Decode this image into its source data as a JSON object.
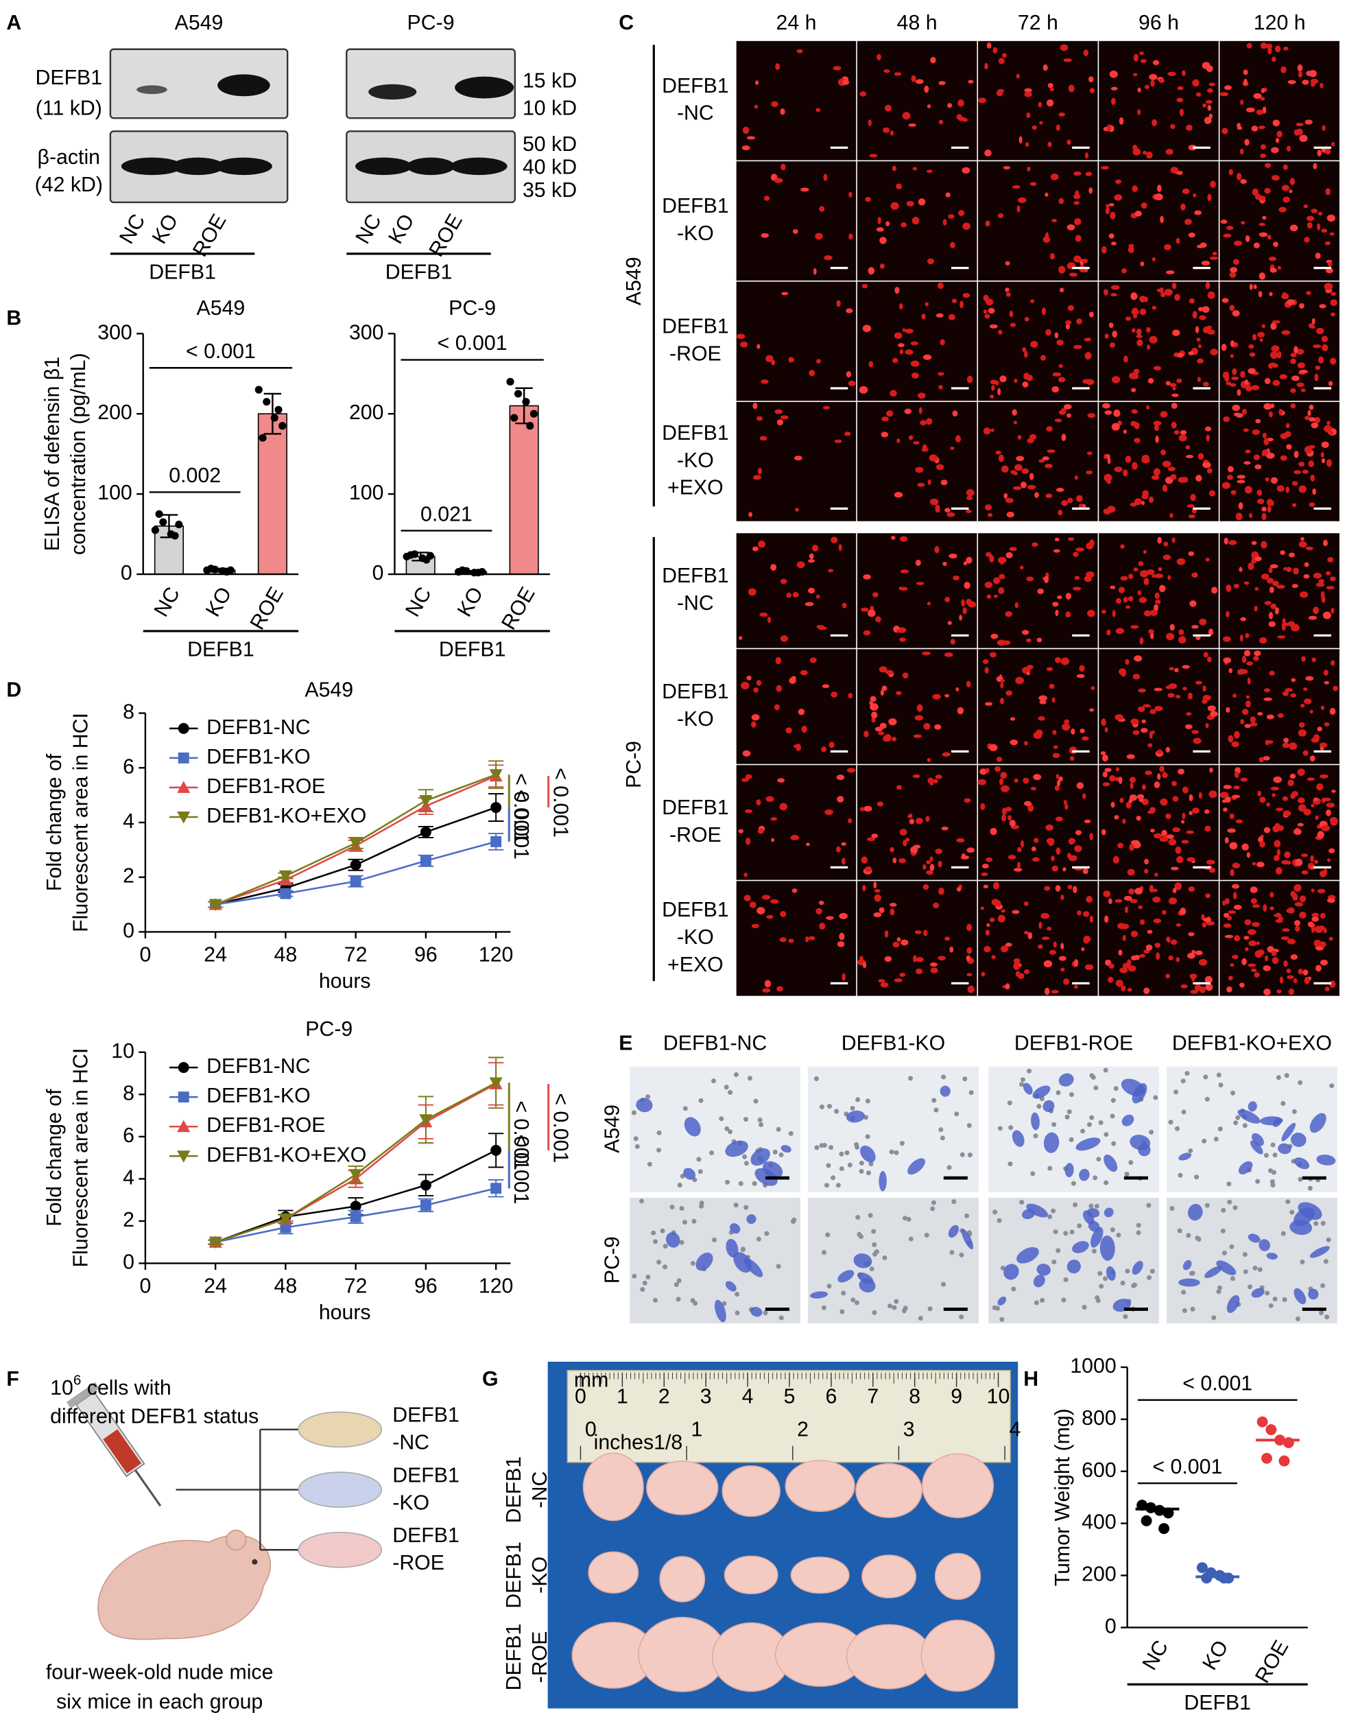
{
  "panel_labels": [
    "A",
    "B",
    "C",
    "D",
    "E",
    "F",
    "G",
    "H"
  ],
  "blot": {
    "cell_lines": [
      "A549",
      "PC-9"
    ],
    "proteins": [
      {
        "name": "DEFB1",
        "size": "(11 kD)"
      },
      {
        "name": "β-actin",
        "size": "(42 kD)"
      }
    ],
    "markers": [
      "15 kD",
      "10 kD",
      "50 kD",
      "40 kD",
      "35 kD"
    ],
    "lanes": [
      "NC",
      "KO",
      "ROE"
    ],
    "lane_colors": [
      "#000000",
      "#3d5fb5",
      "#e8383d"
    ],
    "group": "DEFB1"
  },
  "chart_data": [
    {
      "type": "bar",
      "title": "A549",
      "ylabel": [
        "ELISA of defensin β1",
        "concentration (pg/mL)"
      ],
      "categories": [
        "NC",
        "KO",
        "ROE"
      ],
      "category_colors": [
        "#000000",
        "#3d5fb5",
        "#e8383d"
      ],
      "colors": [
        "#d4d4d4",
        "#d4d4d4",
        "#f08a8a"
      ],
      "values": [
        60,
        5,
        200
      ],
      "errors": [
        14,
        2,
        25
      ],
      "points": [
        [
          55,
          65,
          50,
          62,
          75,
          48
        ],
        [
          5,
          6,
          4,
          5,
          7,
          3
        ],
        [
          230,
          215,
          195,
          185,
          170,
          205
        ]
      ],
      "ylim": [
        0,
        300
      ],
      "yticks": [
        0,
        100,
        200,
        300
      ],
      "group_label": "DEFB1",
      "comparisons": [
        {
          "groups": [
            "NC",
            "KO"
          ],
          "label": "0.002"
        },
        {
          "groups": [
            "NC",
            "ROE"
          ],
          "label": "< 0.001"
        }
      ]
    },
    {
      "type": "bar",
      "title": "PC-9",
      "categories": [
        "NC",
        "KO",
        "ROE"
      ],
      "category_colors": [
        "#000000",
        "#3d5fb5",
        "#e8383d"
      ],
      "colors": [
        "#d4d4d4",
        "#d4d4d4",
        "#f08a8a"
      ],
      "values": [
        22,
        3,
        210
      ],
      "errors": [
        5,
        1,
        22
      ],
      "points": [
        [
          22,
          25,
          20,
          23,
          24,
          18
        ],
        [
          3,
          4,
          2,
          3,
          5,
          2
        ],
        [
          240,
          225,
          215,
          200,
          195,
          185
        ]
      ],
      "ylim": [
        0,
        300
      ],
      "yticks": [
        0,
        100,
        200,
        300
      ],
      "group_label": "DEFB1",
      "comparisons": [
        {
          "groups": [
            "NC",
            "KO"
          ],
          "label": "0.021"
        },
        {
          "groups": [
            "NC",
            "ROE"
          ],
          "label": "< 0.001"
        }
      ]
    },
    {
      "type": "line",
      "title": "A549",
      "xlabel": "hours",
      "ylabel": [
        "Fold change of",
        "Fluorescent area in HCI"
      ],
      "x": [
        24,
        48,
        72,
        96,
        120
      ],
      "xlim": [
        0,
        125
      ],
      "xticks": [
        0,
        24,
        48,
        72,
        96,
        120
      ],
      "ylim": [
        0,
        8
      ],
      "yticks": [
        0,
        2,
        4,
        6,
        8
      ],
      "series": [
        {
          "name": "DEFB1-NC",
          "color": "#000000",
          "marker": "circle",
          "values": [
            1,
            1.6,
            2.45,
            3.65,
            4.55
          ],
          "errors": [
            0.1,
            0.15,
            0.2,
            0.2,
            0.5
          ]
        },
        {
          "name": "DEFB1-KO",
          "color": "#4a6cc4",
          "marker": "square",
          "values": [
            1,
            1.4,
            1.85,
            2.6,
            3.3
          ],
          "errors": [
            0.1,
            0.1,
            0.2,
            0.2,
            0.3
          ]
        },
        {
          "name": "DEFB1-ROE",
          "color": "#e04848",
          "marker": "triangle",
          "values": [
            1,
            1.9,
            3.15,
            4.6,
            5.7
          ],
          "errors": [
            0.1,
            0.1,
            0.2,
            0.3,
            0.4
          ]
        },
        {
          "name": "DEFB1-KO+EXO",
          "color": "#7a7a18",
          "marker": "triangle-down",
          "values": [
            1,
            2.05,
            3.25,
            4.8,
            5.75
          ],
          "errors": [
            0.1,
            0.1,
            0.2,
            0.4,
            0.5
          ]
        }
      ],
      "p_values": [
        {
          "groups": [
            "DEFB1-KO+EXO",
            "DEFB1-KO"
          ],
          "label": "< 0.001"
        },
        {
          "groups": [
            "DEFB1-ROE",
            "DEFB1-NC"
          ],
          "label": "< 0.001"
        },
        {
          "groups": [
            "DEFB1-KO",
            "DEFB1-NC"
          ],
          "label": "< 0.001"
        }
      ]
    },
    {
      "type": "line",
      "title": "PC-9",
      "xlabel": "hours",
      "ylabel": [
        "Fold change of",
        "Fluorescent area in HCI"
      ],
      "x": [
        24,
        48,
        72,
        96,
        120
      ],
      "xlim": [
        0,
        125
      ],
      "xticks": [
        0,
        24,
        48,
        72,
        96,
        120
      ],
      "ylim": [
        0,
        10
      ],
      "yticks": [
        0,
        2,
        4,
        6,
        8,
        10
      ],
      "series": [
        {
          "name": "DEFB1-NC",
          "color": "#000000",
          "marker": "circle",
          "values": [
            1,
            2.2,
            2.7,
            3.7,
            5.35
          ],
          "errors": [
            0.1,
            0.3,
            0.4,
            0.5,
            0.8
          ]
        },
        {
          "name": "DEFB1-KO",
          "color": "#4a6cc4",
          "marker": "square",
          "values": [
            1,
            1.7,
            2.2,
            2.75,
            3.55
          ],
          "errors": [
            0.1,
            0.3,
            0.3,
            0.3,
            0.4
          ]
        },
        {
          "name": "DEFB1-ROE",
          "color": "#e04848",
          "marker": "triangle",
          "values": [
            1,
            2.1,
            4.0,
            6.7,
            8.5
          ],
          "errors": [
            0.1,
            0.2,
            0.4,
            0.8,
            1.0
          ]
        },
        {
          "name": "DEFB1-KO+EXO",
          "color": "#7a7a18",
          "marker": "triangle-down",
          "values": [
            1,
            2.1,
            4.2,
            6.8,
            8.55
          ],
          "errors": [
            0.1,
            0.2,
            0.4,
            1.1,
            1.2
          ]
        }
      ],
      "p_values": [
        {
          "groups": [
            "DEFB1-KO+EXO",
            "DEFB1-KO"
          ],
          "label": "< 0.001"
        },
        {
          "groups": [
            "DEFB1-ROE",
            "DEFB1-NC"
          ],
          "label": "< 0.001"
        },
        {
          "groups": [
            "DEFB1-KO",
            "DEFB1-NC"
          ],
          "label": "< 0.001"
        }
      ]
    },
    {
      "type": "dot",
      "ylabel": [
        "Tumor Weight (mg)"
      ],
      "categories": [
        "NC",
        "KO",
        "ROE"
      ],
      "category_colors": [
        "#000000",
        "#3d5fb5",
        "#e8383d"
      ],
      "values": [
        455,
        195,
        720
      ],
      "points": [
        [
          470,
          460,
          450,
          440,
          410,
          380
        ],
        [
          230,
          210,
          200,
          190,
          190,
          190
        ],
        [
          790,
          760,
          720,
          710,
          650,
          640
        ]
      ],
      "ylim": [
        0,
        1000
      ],
      "yticks": [
        0,
        200,
        400,
        600,
        800,
        1000
      ],
      "group_label": "DEFB1",
      "comparisons": [
        {
          "groups": [
            "NC",
            "KO"
          ],
          "label": "< 0.001"
        },
        {
          "groups": [
            "NC",
            "ROE"
          ],
          "label": "< 0.001"
        }
      ]
    }
  ],
  "imaging": {
    "timepoints": [
      "24 h",
      "48 h",
      "72 h",
      "96 h",
      "120 h"
    ],
    "cell_lines": [
      "A549",
      "PC-9"
    ],
    "groups": [
      [
        "DEFB1",
        "-NC"
      ],
      [
        "DEFB1",
        "-KO"
      ],
      [
        "DEFB1",
        "-ROE"
      ],
      [
        "DEFB1",
        "-KO",
        "+EXO"
      ]
    ],
    "group_colors": [
      "#000000",
      "#3d5fb5",
      "#e8383d",
      "#7a6a1a"
    ]
  },
  "transwell": {
    "groups": [
      "DEFB1-NC",
      "DEFB1-KO",
      "DEFB1-ROE",
      "DEFB1-KO+EXO"
    ],
    "group_colors": [
      "#000000",
      "#3d5fb5",
      "#e8383d",
      "#7a6a1a"
    ],
    "cell_lines": [
      "A549",
      "PC-9"
    ]
  },
  "xenograft": {
    "cells_base": "10",
    "cells_exponent": "6",
    "cells_text": " cells with",
    "cells_line2": "different DEFB1 status",
    "groups": [
      [
        "DEFB1",
        "-NC"
      ],
      [
        "DEFB1",
        "-KO"
      ],
      [
        "DEFB1",
        "-ROE"
      ]
    ],
    "group_colors": [
      "#000000",
      "#3d5fb5",
      "#e8383d"
    ],
    "mice": [
      "four-week-old nude mice",
      "six mice in each group"
    ]
  },
  "tumor_photo": {
    "groups": [
      [
        "DEFB1",
        "-NC"
      ],
      [
        "DEFB1",
        "-KO"
      ],
      [
        "DEFB1",
        "-ROE"
      ]
    ],
    "group_colors": [
      "#000000",
      "#3d5fb5",
      "#e8383d"
    ],
    "ruler_cm": [
      0,
      1,
      2,
      3,
      4,
      5,
      6,
      7,
      8,
      9,
      10
    ],
    "ruler_inch": [
      0,
      1,
      2,
      3,
      4
    ],
    "ruler_units": [
      "mm",
      "inches1/8"
    ]
  }
}
